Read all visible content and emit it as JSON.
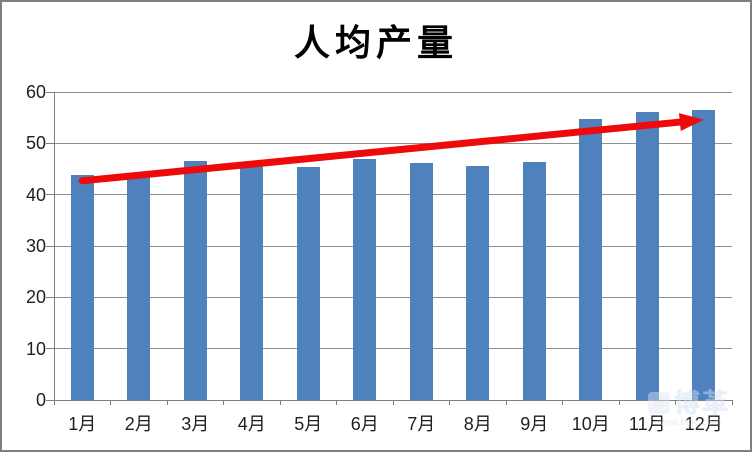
{
  "chart_data": {
    "type": "bar",
    "title": "人均产量",
    "categories": [
      "1月",
      "2月",
      "3月",
      "4月",
      "5月",
      "6月",
      "7月",
      "8月",
      "9月",
      "10月",
      "11月",
      "12月"
    ],
    "values": [
      43.9,
      44.2,
      46.6,
      46.2,
      45.3,
      47.0,
      46.2,
      45.6,
      46.4,
      54.7,
      56.1,
      56.5
    ],
    "ylim": [
      0,
      60
    ],
    "ytick_step": 10,
    "ytick_labels": [
      "0",
      "10",
      "20",
      "30",
      "40",
      "50",
      "60"
    ],
    "grid": true,
    "legend_position": "none",
    "bar_color": "#4f81bd",
    "gridline_color": "#8f8f8f",
    "axis_color": "#7f7f7f",
    "label_color": "#1f1f1f",
    "trend_arrow": {
      "color": "#ee0a0a",
      "stroke_width": 7,
      "start": {
        "category_index": 0,
        "value": 42.7
      },
      "end": {
        "category_index": 11,
        "value": 54.6
      }
    }
  },
  "watermark": {
    "text": "博革",
    "url": "www.bige.com"
  }
}
